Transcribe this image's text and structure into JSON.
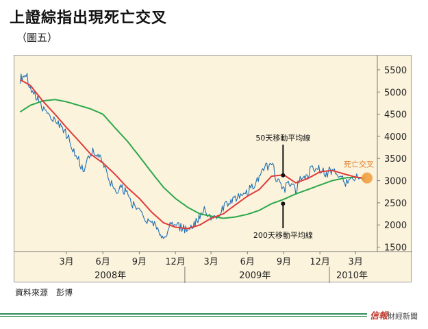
{
  "header": {
    "title": "上證綜指出現死亡交叉",
    "subtitle": "（圖五）"
  },
  "source": "資料來源　彭博",
  "brand": {
    "logo_text": "信報",
    "suffix": "財經新聞"
  },
  "colors": {
    "background": "#fbf3dc",
    "price": "#1f6fb2",
    "ma50": "#e03a3a",
    "ma200": "#2aa84a",
    "marker": "#f0a040",
    "footer": "#2e8b57"
  },
  "chart_data": {
    "type": "line",
    "title": "",
    "xlabel": "",
    "ylabel": "",
    "ylim": [
      1400,
      5700
    ],
    "xlim": [
      "2007-11-01",
      "2010-04-25"
    ],
    "yticks": [
      "1500",
      "2000",
      "2500",
      "3000",
      "3500",
      "4000",
      "4500",
      "5000",
      "5500"
    ],
    "xticks": [
      {
        "label": "3月",
        "date": "2008-03-01"
      },
      {
        "label": "6月",
        "date": "2008-06-01"
      },
      {
        "label": "9月",
        "date": "2008-09-01"
      },
      {
        "label": "12月",
        "date": "2008-12-01"
      },
      {
        "label": "3月",
        "date": "2009-03-01"
      },
      {
        "label": "6月",
        "date": "2009-06-01"
      },
      {
        "label": "9月",
        "date": "2009-09-01"
      },
      {
        "label": "12月",
        "date": "2009-12-01"
      },
      {
        "label": "3月",
        "date": "2010-03-01"
      }
    ],
    "years": [
      {
        "label": "2008年",
        "date": "2008-06-20"
      },
      {
        "label": "2009年",
        "date": "2009-06-20"
      },
      {
        "label": "2010年",
        "date": "2010-02-20"
      }
    ],
    "year_separators": [
      "2008-12-25",
      "2009-12-25"
    ],
    "series": [
      {
        "key": "price",
        "points": [
          [
            "2007-11-05",
            5300
          ],
          [
            "2007-11-20",
            5400
          ],
          [
            "2007-12-01",
            5100
          ],
          [
            "2007-12-15",
            4900
          ],
          [
            "2008-01-01",
            4650
          ],
          [
            "2008-01-15",
            4500
          ],
          [
            "2008-02-01",
            4350
          ],
          [
            "2008-02-15",
            4200
          ],
          [
            "2008-03-01",
            4050
          ],
          [
            "2008-03-15",
            3750
          ],
          [
            "2008-04-01",
            3450
          ],
          [
            "2008-04-15",
            3200
          ],
          [
            "2008-05-01",
            3650
          ],
          [
            "2008-05-15",
            3600
          ],
          [
            "2008-06-01",
            3450
          ],
          [
            "2008-06-15",
            3050
          ],
          [
            "2008-07-01",
            2750
          ],
          [
            "2008-07-15",
            2850
          ],
          [
            "2008-08-01",
            2700
          ],
          [
            "2008-08-15",
            2450
          ],
          [
            "2008-09-01",
            2300
          ],
          [
            "2008-09-15",
            2100
          ],
          [
            "2008-10-01",
            2100
          ],
          [
            "2008-10-15",
            1900
          ],
          [
            "2008-11-01",
            1700
          ],
          [
            "2008-11-15",
            1950
          ],
          [
            "2008-12-01",
            2000
          ],
          [
            "2008-12-15",
            1950
          ],
          [
            "2009-01-01",
            1850
          ],
          [
            "2009-01-15",
            1950
          ],
          [
            "2009-02-01",
            2200
          ],
          [
            "2009-02-15",
            2350
          ],
          [
            "2009-03-01",
            2150
          ],
          [
            "2009-03-15",
            2200
          ],
          [
            "2009-04-01",
            2400
          ],
          [
            "2009-04-15",
            2550
          ],
          [
            "2009-05-01",
            2600
          ],
          [
            "2009-05-15",
            2650
          ],
          [
            "2009-06-01",
            2750
          ],
          [
            "2009-06-15",
            2900
          ],
          [
            "2009-07-01",
            3050
          ],
          [
            "2009-07-15",
            3250
          ],
          [
            "2009-08-01",
            3450
          ],
          [
            "2009-08-15",
            3000
          ],
          [
            "2009-09-01",
            2800
          ],
          [
            "2009-09-15",
            2950
          ],
          [
            "2009-10-01",
            2800
          ],
          [
            "2009-10-15",
            3050
          ],
          [
            "2009-11-01",
            3150
          ],
          [
            "2009-11-15",
            3300
          ],
          [
            "2009-12-01",
            3250
          ],
          [
            "2009-12-15",
            3150
          ],
          [
            "2010-01-01",
            3250
          ],
          [
            "2010-01-15",
            3200
          ],
          [
            "2010-02-01",
            2950
          ],
          [
            "2010-02-15",
            3000
          ],
          [
            "2010-03-01",
            3050
          ],
          [
            "2010-03-15",
            3080
          ],
          [
            "2010-03-25",
            3100
          ]
        ]
      },
      {
        "key": "ma50",
        "points": [
          [
            "2007-11-05",
            5280
          ],
          [
            "2007-12-01",
            5150
          ],
          [
            "2008-01-01",
            4800
          ],
          [
            "2008-02-01",
            4500
          ],
          [
            "2008-03-01",
            4200
          ],
          [
            "2008-04-01",
            3900
          ],
          [
            "2008-05-01",
            3600
          ],
          [
            "2008-06-01",
            3400
          ],
          [
            "2008-07-01",
            3150
          ],
          [
            "2008-08-01",
            2850
          ],
          [
            "2008-09-01",
            2600
          ],
          [
            "2008-10-01",
            2300
          ],
          [
            "2008-11-01",
            2050
          ],
          [
            "2008-12-01",
            1950
          ],
          [
            "2009-01-01",
            1920
          ],
          [
            "2009-02-01",
            2000
          ],
          [
            "2009-03-01",
            2150
          ],
          [
            "2009-04-01",
            2250
          ],
          [
            "2009-05-01",
            2450
          ],
          [
            "2009-06-01",
            2650
          ],
          [
            "2009-07-01",
            2800
          ],
          [
            "2009-08-01",
            3100
          ],
          [
            "2009-09-01",
            3130
          ],
          [
            "2009-10-01",
            2950
          ],
          [
            "2009-11-01",
            3050
          ],
          [
            "2009-12-01",
            3200
          ],
          [
            "2010-01-01",
            3230
          ],
          [
            "2010-02-01",
            3150
          ],
          [
            "2010-03-01",
            3080
          ],
          [
            "2010-03-25",
            3050
          ]
        ]
      },
      {
        "key": "ma200",
        "points": [
          [
            "2007-11-05",
            4550
          ],
          [
            "2007-12-01",
            4700
          ],
          [
            "2008-01-01",
            4800
          ],
          [
            "2008-02-01",
            4830
          ],
          [
            "2008-03-01",
            4780
          ],
          [
            "2008-04-01",
            4700
          ],
          [
            "2008-05-01",
            4620
          ],
          [
            "2008-06-01",
            4500
          ],
          [
            "2008-07-01",
            4200
          ],
          [
            "2008-08-01",
            3900
          ],
          [
            "2008-09-01",
            3550
          ],
          [
            "2008-10-01",
            3200
          ],
          [
            "2008-11-01",
            2850
          ],
          [
            "2008-12-01",
            2600
          ],
          [
            "2009-01-01",
            2400
          ],
          [
            "2009-02-01",
            2250
          ],
          [
            "2009-03-01",
            2200
          ],
          [
            "2009-04-01",
            2150
          ],
          [
            "2009-05-01",
            2180
          ],
          [
            "2009-06-01",
            2240
          ],
          [
            "2009-07-01",
            2330
          ],
          [
            "2009-08-01",
            2480
          ],
          [
            "2009-09-01",
            2580
          ],
          [
            "2009-10-01",
            2700
          ],
          [
            "2009-11-01",
            2800
          ],
          [
            "2009-12-01",
            2900
          ],
          [
            "2010-01-01",
            3000
          ],
          [
            "2010-02-01",
            3060
          ],
          [
            "2010-03-01",
            3080
          ],
          [
            "2010-03-25",
            3050
          ]
        ]
      }
    ],
    "annotations": [
      {
        "key": "ma50_label",
        "text": "50天移動平均線",
        "date": "2009-08-30",
        "value": 3120
      },
      {
        "key": "ma200_label",
        "text": "200天移動平均線",
        "date": "2009-08-30",
        "value": 2480
      },
      {
        "key": "cross_label",
        "text": "死亡交叉",
        "date": "2010-03-30",
        "value": 3060
      }
    ]
  }
}
